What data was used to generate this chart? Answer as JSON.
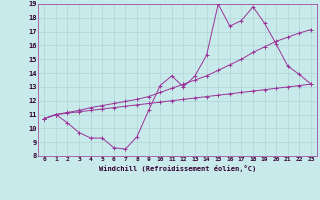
{
  "xlabel": "Windchill (Refroidissement éolien,°C)",
  "xlim": [
    -0.5,
    23.5
  ],
  "ylim": [
    8,
    19
  ],
  "xticks": [
    0,
    1,
    2,
    3,
    4,
    5,
    6,
    7,
    8,
    9,
    10,
    11,
    12,
    13,
    14,
    15,
    16,
    17,
    18,
    19,
    20,
    21,
    22,
    23
  ],
  "yticks": [
    8,
    9,
    10,
    11,
    12,
    13,
    14,
    15,
    16,
    17,
    18,
    19
  ],
  "bg_color": "#c8eaea",
  "grid_color": "#b0d4d4",
  "line_color": "#993399",
  "line1_x": [
    0,
    1,
    2,
    3,
    4,
    5,
    6,
    7,
    8,
    9,
    10,
    11,
    12,
    13,
    14,
    15,
    16,
    17,
    18,
    19,
    20,
    21,
    22,
    23
  ],
  "line1_y": [
    10.7,
    11.0,
    10.4,
    9.7,
    9.3,
    9.3,
    8.6,
    8.5,
    9.4,
    11.3,
    13.1,
    13.8,
    13.0,
    13.8,
    15.3,
    19.0,
    17.4,
    17.8,
    18.8,
    17.6,
    16.1,
    14.5,
    13.9,
    13.2
  ],
  "line2_x": [
    0,
    1,
    2,
    3,
    4,
    5,
    6,
    7,
    8,
    9,
    10,
    11,
    12,
    13,
    14,
    15,
    16,
    17,
    18,
    19,
    20,
    21,
    22,
    23
  ],
  "line2_y": [
    10.7,
    11.0,
    11.1,
    11.2,
    11.3,
    11.4,
    11.5,
    11.6,
    11.7,
    11.8,
    11.9,
    12.0,
    12.1,
    12.2,
    12.3,
    12.4,
    12.5,
    12.6,
    12.7,
    12.8,
    12.9,
    13.0,
    13.1,
    13.2
  ],
  "line3_x": [
    0,
    1,
    2,
    3,
    4,
    5,
    6,
    7,
    8,
    9,
    10,
    11,
    12,
    13,
    14,
    15,
    16,
    17,
    18,
    19,
    20,
    21,
    22,
    23
  ],
  "line3_y": [
    10.7,
    11.0,
    11.15,
    11.3,
    11.5,
    11.65,
    11.8,
    11.95,
    12.1,
    12.3,
    12.6,
    12.9,
    13.2,
    13.5,
    13.8,
    14.2,
    14.6,
    15.0,
    15.5,
    15.9,
    16.3,
    16.6,
    16.9,
    17.15
  ]
}
